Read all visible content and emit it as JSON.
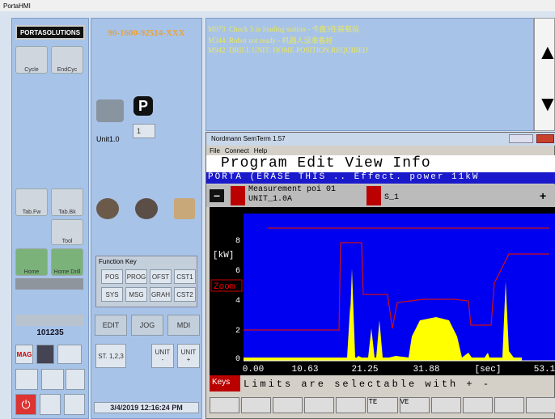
{
  "window_title": "PortaHMI",
  "left_panel": {
    "logo": "PORTASOLUTIONS",
    "cycle": "Cycle",
    "end_cycle": "EndCyc",
    "tab_fw": "Tab.Fw",
    "tab_bk": "Tab.Bk",
    "tool": "Tool",
    "home": "Home",
    "home_drill": "Home Drill",
    "counter": "101235",
    "mag": "MAG"
  },
  "middle_panel": {
    "part_number": "90-1600-92514-XXX",
    "unit": "Unit1.0",
    "unit_select": "1",
    "function_key": {
      "title": "Function Key",
      "keys": [
        [
          "POS",
          "PROG",
          "OFST",
          "CST1"
        ],
        [
          "SYS",
          "MSG",
          "GRAH",
          "CST2"
        ]
      ]
    },
    "modes": [
      "EDIT",
      "JOG",
      "MDI"
    ],
    "station": "ST. 1,2,3",
    "unit_minus": [
      "UNIT",
      "-"
    ],
    "unit_plus": [
      "UNIT",
      "+"
    ],
    "datetime": "3/4/2019 12:16:24 PM"
  },
  "messages": [
    {
      "code": "M073",
      "text": "Chuck 3 in loading station - 卡盘3在装载站"
    },
    {
      "code": "M344",
      "text": "Robot not ready - 机器人没准备好"
    },
    {
      "code": "M942",
      "text": "DRILL UNIT: HOME POSITION REQUIRED"
    }
  ],
  "semterm": {
    "title": "Nordmann SemTerm 1.57",
    "menu": [
      "File",
      "Connect",
      "Help"
    ],
    "header": "Program Edit View Info",
    "status": "PORTA (ERASE THIS .. Effect. power 11kW",
    "measurement": "Measurement poi 01",
    "unit": "UNIT_1.0A",
    "sensor": "S_1",
    "y_label": "[kW]",
    "zoom": "Zoom",
    "y_ticks": [
      "8",
      "6",
      "4",
      "2",
      "0"
    ],
    "x_ticks": [
      "0.00",
      "10.63",
      "21.25",
      "31.88",
      "[sec]",
      "53.1"
    ],
    "keys": "Keys",
    "hint": "Limits are selectable with + -",
    "soft_keys": [
      "TE",
      "VE"
    ]
  }
}
